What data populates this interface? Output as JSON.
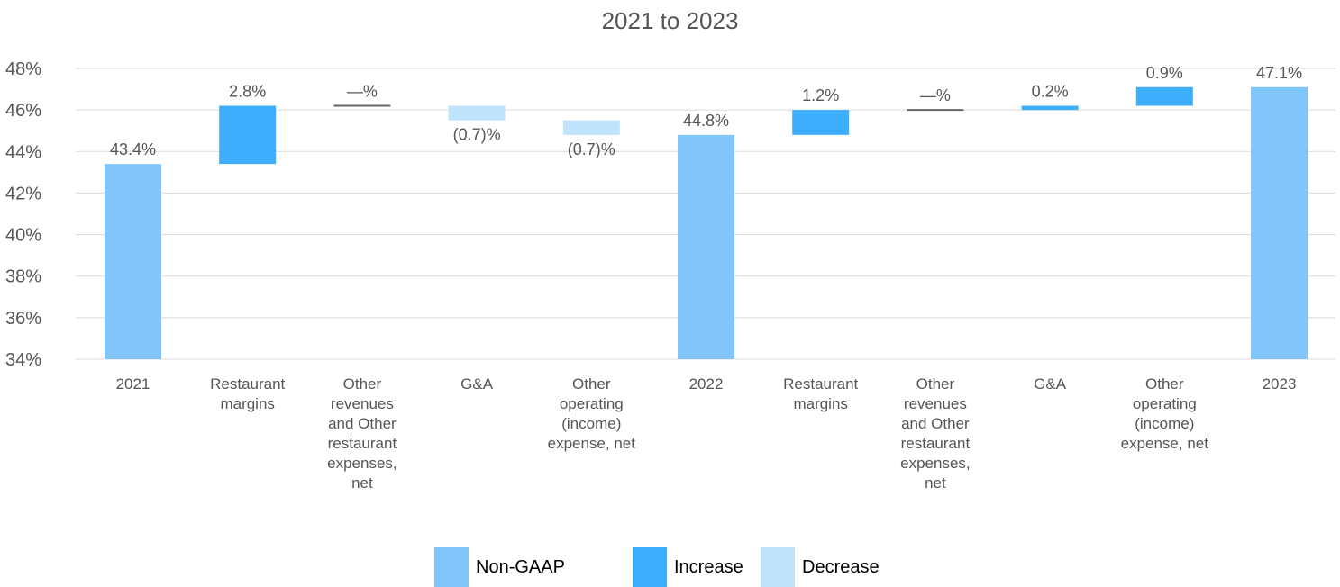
{
  "title": "2021 to 2023",
  "colors": {
    "non_gaap": "#80C6FB",
    "increase": "#3DAEFB",
    "decrease": "#C0E3FC",
    "grid": "#dadada",
    "text": "#555555",
    "zero_marker": "#666666"
  },
  "legend": [
    {
      "key": "non_gaap",
      "label": "Non-GAAP"
    },
    {
      "key": "increase",
      "label": "Increase"
    },
    {
      "key": "decrease",
      "label": "Decrease"
    }
  ],
  "chart_data": {
    "type": "bar",
    "subtype": "waterfall",
    "title": "2021 to 2023",
    "ylim": [
      34,
      48
    ],
    "ytick_values": [
      34,
      36,
      38,
      40,
      42,
      44,
      46,
      48
    ],
    "ytick_labels": [
      "34%",
      "36%",
      "38%",
      "40%",
      "42%",
      "44%",
      "46%",
      "48%"
    ],
    "grid": true,
    "legend_position": "bottom-center",
    "categories": [
      "2021",
      "Restaurant margins",
      "Other revenues and Other restaurant expenses, net",
      "G&A",
      "Other operating (income) expense, net",
      "2022",
      "Restaurant margins",
      "Other revenues and Other restaurant expenses, net",
      "G&A",
      "Other operating (income) expense, net",
      "2023"
    ],
    "category_label_lines": [
      [
        "2021"
      ],
      [
        "Restaurant",
        "margins"
      ],
      [
        "Other",
        "revenues",
        "and Other",
        "restaurant",
        "expenses,",
        "net"
      ],
      [
        "G&A"
      ],
      [
        "Other",
        "operating",
        "(income)",
        "expense, net"
      ],
      [
        "2022"
      ],
      [
        "Restaurant",
        "margins"
      ],
      [
        "Other",
        "revenues",
        "and Other",
        "restaurant",
        "expenses,",
        "net"
      ],
      [
        "G&A"
      ],
      [
        "Other",
        "operating",
        "(income)",
        "expense, net"
      ],
      [
        "2023"
      ]
    ],
    "bars": [
      {
        "kind": "non_gaap",
        "start": 34,
        "end": 43.4,
        "label": "43.4%",
        "label_pos": "above"
      },
      {
        "kind": "increase",
        "start": 43.4,
        "end": 46.2,
        "label": "2.8%",
        "label_pos": "above"
      },
      {
        "kind": "zero",
        "start": 46.2,
        "end": 46.2,
        "label": "—%",
        "label_pos": "above"
      },
      {
        "kind": "decrease",
        "start": 46.2,
        "end": 45.5,
        "label": "(0.7)%",
        "label_pos": "below"
      },
      {
        "kind": "decrease",
        "start": 45.5,
        "end": 44.8,
        "label": "(0.7)%",
        "label_pos": "below"
      },
      {
        "kind": "non_gaap",
        "start": 34,
        "end": 44.8,
        "label": "44.8%",
        "label_pos": "above"
      },
      {
        "kind": "increase",
        "start": 44.8,
        "end": 46.0,
        "label": "1.2%",
        "label_pos": "above"
      },
      {
        "kind": "zero",
        "start": 46.0,
        "end": 46.0,
        "label": "—%",
        "label_pos": "above"
      },
      {
        "kind": "increase",
        "start": 46.0,
        "end": 46.2,
        "label": "0.2%",
        "label_pos": "above"
      },
      {
        "kind": "increase",
        "start": 46.2,
        "end": 47.1,
        "label": "0.9%",
        "label_pos": "above"
      },
      {
        "kind": "non_gaap",
        "start": 34,
        "end": 47.1,
        "label": "47.1%",
        "label_pos": "above"
      }
    ]
  }
}
